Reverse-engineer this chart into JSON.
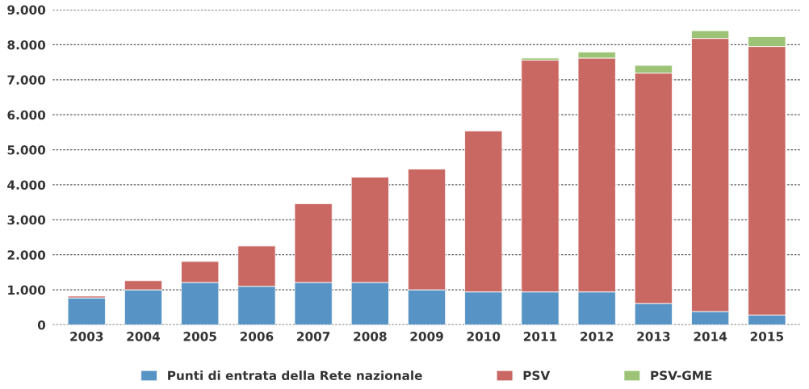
{
  "chart_data": {
    "type": "bar",
    "stacked": true,
    "categories": [
      "2003",
      "2004",
      "2005",
      "2006",
      "2007",
      "2008",
      "2009",
      "2010",
      "2011",
      "2012",
      "2013",
      "2014",
      "2015"
    ],
    "series": [
      {
        "name": "Punti di entrata della Rete nazionale",
        "color": "#5793c4",
        "values": [
          770,
          1000,
          1210,
          1100,
          1210,
          1210,
          1000,
          940,
          940,
          940,
          610,
          380,
          280
        ]
      },
      {
        "name": "PSV",
        "color": "#c96763",
        "values": [
          50,
          260,
          600,
          1150,
          2250,
          3010,
          3450,
          4600,
          6620,
          6680,
          6580,
          7800,
          7670
        ]
      },
      {
        "name": "PSV-GME",
        "color": "#9dc476",
        "values": [
          null,
          null,
          null,
          null,
          null,
          null,
          null,
          null,
          60,
          170,
          220,
          220,
          280
        ]
      }
    ],
    "ylim": [
      0,
      9000
    ],
    "yticks": [
      0,
      {
        "value": 1000,
        "label": "1.000"
      },
      {
        "value": 2000,
        "label": "2.000"
      },
      {
        "value": 3000,
        "label": "3.000"
      },
      {
        "value": 4000,
        "label": "4.000"
      },
      {
        "value": 5000,
        "label": "5.000"
      },
      {
        "value": 6000,
        "label": "6.000"
      },
      {
        "value": 7000,
        "label": "7.000"
      },
      {
        "value": 8000,
        "label": "8.000"
      },
      {
        "value": 9000,
        "label": "9.000"
      }
    ],
    "grid": "y",
    "legend": "bottom"
  }
}
